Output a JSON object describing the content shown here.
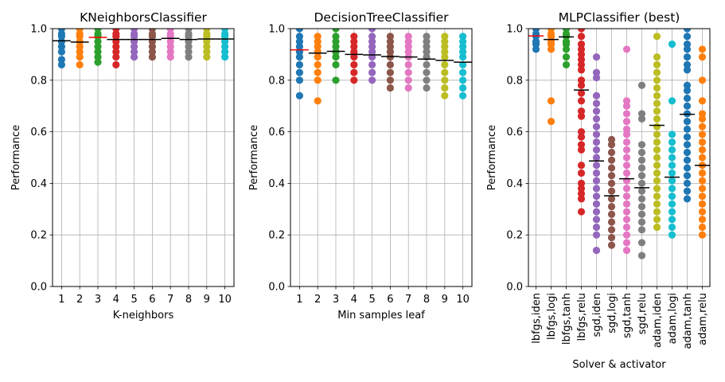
{
  "chart_data": [
    {
      "type": "scatter",
      "title": "KNeighborsClassifier",
      "xlabel": "K-neighbors",
      "ylabel": "Performance",
      "ylim": [
        0,
        1.0
      ],
      "yticks": [
        "0.0",
        "0.2",
        "0.4",
        "0.6",
        "0.8",
        "1.0"
      ],
      "grid": true,
      "categories": [
        "1",
        "2",
        "3",
        "4",
        "5",
        "6",
        "7",
        "8",
        "9",
        "10"
      ],
      "best_index": 2,
      "means": [
        0.953,
        0.948,
        0.966,
        0.958,
        0.958,
        0.958,
        0.962,
        0.958,
        0.96,
        0.96
      ],
      "points": [
        [
          0.86,
          0.88,
          0.91,
          0.93,
          0.95,
          0.97,
          0.98,
          1.0
        ],
        [
          0.86,
          0.89,
          0.91,
          0.93,
          0.95,
          0.97,
          0.98,
          1.0
        ],
        [
          0.87,
          0.89,
          0.91,
          0.93,
          0.95,
          0.97,
          0.98,
          1.0
        ],
        [
          0.86,
          0.89,
          0.91,
          0.93,
          0.95,
          0.97,
          0.98,
          1.0
        ],
        [
          0.89,
          0.91,
          0.93,
          0.95,
          0.97,
          0.98,
          1.0
        ],
        [
          0.89,
          0.91,
          0.93,
          0.95,
          0.97,
          0.98,
          1.0
        ],
        [
          0.89,
          0.91,
          0.93,
          0.95,
          0.97,
          0.98,
          1.0
        ],
        [
          0.89,
          0.91,
          0.93,
          0.95,
          0.97,
          0.98,
          1.0
        ],
        [
          0.89,
          0.91,
          0.93,
          0.95,
          0.97,
          0.98,
          1.0
        ],
        [
          0.89,
          0.91,
          0.93,
          0.95,
          0.97,
          0.98,
          1.0
        ]
      ]
    },
    {
      "type": "scatter",
      "title": "DecisionTreeClassifier",
      "xlabel": "Min samples leaf",
      "ylabel": "Performance",
      "ylim": [
        0,
        1.0
      ],
      "yticks": [
        "0.0",
        "0.2",
        "0.4",
        "0.6",
        "0.8",
        "1.0"
      ],
      "grid": true,
      "categories": [
        "1",
        "2",
        "3",
        "4",
        "5",
        "6",
        "7",
        "8",
        "9",
        "10"
      ],
      "best_index": 0,
      "means": [
        0.918,
        0.905,
        0.912,
        0.9,
        0.898,
        0.892,
        0.89,
        0.882,
        0.877,
        0.87
      ],
      "points": [
        [
          0.74,
          0.8,
          0.83,
          0.86,
          0.89,
          0.91,
          0.93,
          0.95,
          0.97,
          1.0
        ],
        [
          0.72,
          0.8,
          0.83,
          0.86,
          0.89,
          0.91,
          0.93,
          0.95,
          0.97
        ],
        [
          0.8,
          0.86,
          0.89,
          0.91,
          0.93,
          0.95,
          0.97,
          1.0
        ],
        [
          0.8,
          0.83,
          0.86,
          0.89,
          0.91,
          0.93,
          0.95,
          0.97
        ],
        [
          0.8,
          0.83,
          0.86,
          0.89,
          0.91,
          0.93,
          0.95,
          0.97,
          1.0
        ],
        [
          0.77,
          0.8,
          0.83,
          0.86,
          0.89,
          0.91,
          0.93,
          0.95,
          0.97
        ],
        [
          0.77,
          0.8,
          0.83,
          0.86,
          0.89,
          0.91,
          0.93,
          0.95,
          0.97
        ],
        [
          0.77,
          0.8,
          0.83,
          0.86,
          0.89,
          0.91,
          0.93,
          0.95,
          0.97
        ],
        [
          0.74,
          0.77,
          0.8,
          0.83,
          0.86,
          0.89,
          0.91,
          0.93,
          0.95,
          0.97
        ],
        [
          0.74,
          0.77,
          0.8,
          0.83,
          0.86,
          0.89,
          0.91,
          0.93,
          0.95,
          0.97
        ]
      ]
    },
    {
      "type": "scatter",
      "title": "MLPClassifier (best)",
      "xlabel": "Solver & activator",
      "ylabel": "Performance",
      "ylim": [
        0,
        1.0
      ],
      "yticks": [
        "0.0",
        "0.2",
        "0.4",
        "0.6",
        "0.8",
        "1.0"
      ],
      "grid": true,
      "categories": [
        "lbfgs,iden",
        "lbfgs,logi",
        "lbfgs,tanh",
        "lbfgs,relu",
        "sgd,iden",
        "sgd,logi",
        "sgd,tanh",
        "sgd,relu",
        "adam,iden",
        "adam,logi",
        "adam,tanh",
        "adam,relu"
      ],
      "best_index": 0,
      "means": [
        0.972,
        0.958,
        0.968,
        0.762,
        0.487,
        0.352,
        0.418,
        0.383,
        0.625,
        0.424,
        0.668,
        0.47
      ],
      "points": [
        [
          0.92,
          0.94,
          0.95,
          0.97,
          0.98,
          1.0
        ],
        [
          0.64,
          0.72,
          0.92,
          0.94,
          0.95,
          0.97,
          0.98,
          1.0
        ],
        [
          0.86,
          0.89,
          0.92,
          0.94,
          0.95,
          0.97,
          0.98,
          1.0
        ],
        [
          0.29,
          0.34,
          0.36,
          0.38,
          0.4,
          0.44,
          0.47,
          0.53,
          0.55,
          0.58,
          0.6,
          0.66,
          0.68,
          0.72,
          0.75,
          0.78,
          0.8,
          0.84,
          0.86,
          0.88,
          0.9,
          0.92,
          0.94,
          0.97,
          1.0
        ],
        [
          0.14,
          0.2,
          0.23,
          0.26,
          0.29,
          0.32,
          0.35,
          0.38,
          0.41,
          0.44,
          0.47,
          0.5,
          0.53,
          0.56,
          0.59,
          0.62,
          0.65,
          0.68,
          0.71,
          0.74,
          0.81,
          0.83,
          0.89
        ],
        [
          0.16,
          0.19,
          0.22,
          0.25,
          0.28,
          0.31,
          0.34,
          0.37,
          0.4,
          0.43,
          0.46,
          0.49,
          0.52,
          0.55,
          0.57
        ],
        [
          0.14,
          0.17,
          0.2,
          0.23,
          0.26,
          0.29,
          0.32,
          0.35,
          0.38,
          0.41,
          0.44,
          0.47,
          0.5,
          0.53,
          0.56,
          0.59,
          0.61,
          0.64,
          0.67,
          0.7,
          0.72,
          0.92
        ],
        [
          0.12,
          0.17,
          0.22,
          0.25,
          0.28,
          0.31,
          0.34,
          0.37,
          0.4,
          0.43,
          0.46,
          0.49,
          0.52,
          0.55,
          0.65,
          0.67,
          0.78
        ],
        [
          0.23,
          0.26,
          0.29,
          0.32,
          0.35,
          0.38,
          0.41,
          0.44,
          0.47,
          0.5,
          0.53,
          0.56,
          0.59,
          0.62,
          0.65,
          0.68,
          0.71,
          0.74,
          0.77,
          0.8,
          0.83,
          0.86,
          0.89,
          0.97
        ],
        [
          0.2,
          0.23,
          0.26,
          0.29,
          0.32,
          0.35,
          0.38,
          0.41,
          0.44,
          0.47,
          0.5,
          0.53,
          0.56,
          0.59,
          0.72,
          0.94
        ],
        [
          0.34,
          0.37,
          0.4,
          0.43,
          0.46,
          0.49,
          0.52,
          0.55,
          0.58,
          0.61,
          0.64,
          0.67,
          0.7,
          0.73,
          0.76,
          0.78,
          0.84,
          0.86,
          0.89,
          0.92,
          0.94,
          0.97,
          1.0
        ],
        [
          0.2,
          0.23,
          0.26,
          0.29,
          0.32,
          0.35,
          0.38,
          0.41,
          0.44,
          0.47,
          0.5,
          0.53,
          0.56,
          0.59,
          0.62,
          0.65,
          0.67,
          0.72,
          0.8,
          0.89,
          0.92
        ]
      ]
    }
  ],
  "colors": {
    "series": [
      "#1f77b4",
      "#ff7f0e",
      "#2ca02c",
      "#d62728",
      "#9467bd",
      "#8c564b",
      "#e377c2",
      "#7f7f7f",
      "#bcbd22",
      "#17becf"
    ],
    "mean_line": "#000000",
    "best_line": "#ff0000",
    "grid": "#b0b0b0"
  }
}
